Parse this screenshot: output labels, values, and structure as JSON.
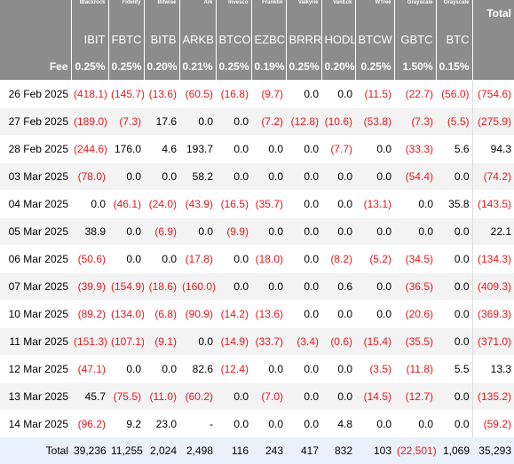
{
  "issuers": [
    "Blackrock",
    "Fidelity",
    "Bitwise",
    "Ark",
    "Invesco",
    "Franklin",
    "Valkyrie",
    "VanEck",
    "WTree",
    "Grayscale",
    "Grayscale"
  ],
  "tickers": [
    "IBIT",
    "FBTC",
    "BITB",
    "ARKB",
    "BTCO",
    "EZBC",
    "BRRR",
    "HODL",
    "BTCW",
    "GBTC",
    "BTC"
  ],
  "total_header": "Total",
  "fee_label": "Fee",
  "fees": [
    "0.25%",
    "0.25%",
    "0.20%",
    "0.21%",
    "0.25%",
    "0.19%",
    "0.25%",
    "0.20%",
    "0.25%",
    "1.50%",
    "0.15%"
  ],
  "fee_total": "",
  "rows": [
    {
      "date": "26 Feb 2025",
      "values": [
        "(418.1)",
        "(145.7)",
        "(13.6)",
        "(60.5)",
        "(16.8)",
        "(9.7)",
        "0.0",
        "0.0",
        "(11.5)",
        "(22.7)",
        "(56.0)"
      ],
      "total": "(754.6)"
    },
    {
      "date": "27 Feb 2025",
      "values": [
        "(189.0)",
        "(7.3)",
        "17.6",
        "0.0",
        "0.0",
        "(7.2)",
        "(12.8)",
        "(10.6)",
        "(53.8)",
        "(7.3)",
        "(5.5)"
      ],
      "total": "(275.9)"
    },
    {
      "date": "28 Feb 2025",
      "values": [
        "(244.6)",
        "176.0",
        "4.6",
        "193.7",
        "0.0",
        "0.0",
        "0.0",
        "(7.7)",
        "0.0",
        "(33.3)",
        "5.6"
      ],
      "total": "94.3"
    },
    {
      "date": "03 Mar 2025",
      "values": [
        "(78.0)",
        "0.0",
        "0.0",
        "58.2",
        "0.0",
        "0.0",
        "0.0",
        "0.0",
        "0.0",
        "(54.4)",
        "0.0"
      ],
      "total": "(74.2)"
    },
    {
      "date": "04 Mar 2025",
      "values": [
        "0.0",
        "(46.1)",
        "(24.0)",
        "(43.9)",
        "(16.5)",
        "(35.7)",
        "0.0",
        "0.0",
        "(13.1)",
        "0.0",
        "35.8"
      ],
      "total": "(143.5)"
    },
    {
      "date": "05 Mar 2025",
      "values": [
        "38.9",
        "0.0",
        "(6.9)",
        "0.0",
        "(9.9)",
        "0.0",
        "0.0",
        "0.0",
        "0.0",
        "0.0",
        "0.0"
      ],
      "total": "22.1"
    },
    {
      "date": "06 Mar 2025",
      "values": [
        "(50.6)",
        "0.0",
        "0.0",
        "(17.8)",
        "0.0",
        "(18.0)",
        "0.0",
        "(8.2)",
        "(5.2)",
        "(34.5)",
        "0.0"
      ],
      "total": "(134.3)"
    },
    {
      "date": "07 Mar 2025",
      "values": [
        "(39.9)",
        "(154.9)",
        "(18.6)",
        "(160.0)",
        "0.0",
        "0.0",
        "0.0",
        "0.6",
        "0.0",
        "(36.5)",
        "0.0"
      ],
      "total": "(409.3)"
    },
    {
      "date": "10 Mar 2025",
      "values": [
        "(89.2)",
        "(134.0)",
        "(6.8)",
        "(90.9)",
        "(14.2)",
        "(13.6)",
        "0.0",
        "0.0",
        "0.0",
        "(20.6)",
        "0.0"
      ],
      "total": "(369.3)"
    },
    {
      "date": "11 Mar 2025",
      "values": [
        "(151.3)",
        "(107.1)",
        "(9.1)",
        "0.0",
        "(14.9)",
        "(33.7)",
        "(3.4)",
        "(0.6)",
        "(15.4)",
        "(35.5)",
        "0.0"
      ],
      "total": "(371.0)"
    },
    {
      "date": "12 Mar 2025",
      "values": [
        "(47.1)",
        "0.0",
        "0.0",
        "82.6",
        "(12.4)",
        "0.0",
        "0.0",
        "0.0",
        "(3.5)",
        "(11.8)",
        "5.5"
      ],
      "total": "13.3"
    },
    {
      "date": "13 Mar 2025",
      "values": [
        "45.7",
        "(75.5)",
        "(11.0)",
        "(60.2)",
        "0.0",
        "(7.0)",
        "0.0",
        "0.0",
        "(14.5)",
        "(12.7)",
        "0.0"
      ],
      "total": "(135.2)"
    },
    {
      "date": "14 Mar 2025",
      "values": [
        "(96.2)",
        "9.2",
        "23.0",
        "-",
        "0.0",
        "0.0",
        "0.0",
        "4.8",
        "0.0",
        "0.0",
        "0.0"
      ],
      "total": "(59.2)"
    }
  ],
  "totals_label": "Total",
  "totals": [
    "39,236",
    "11,255",
    "2,024",
    "2,498",
    "116",
    "243",
    "417",
    "832",
    "103",
    "(22,501)",
    "1,069"
  ],
  "grand_total": "35,293",
  "colors": {
    "header_bg": "#8c8c8c",
    "negative": "#e8171d",
    "alt_row": "#f3f3f3",
    "total_row": "#eaf1fb"
  }
}
